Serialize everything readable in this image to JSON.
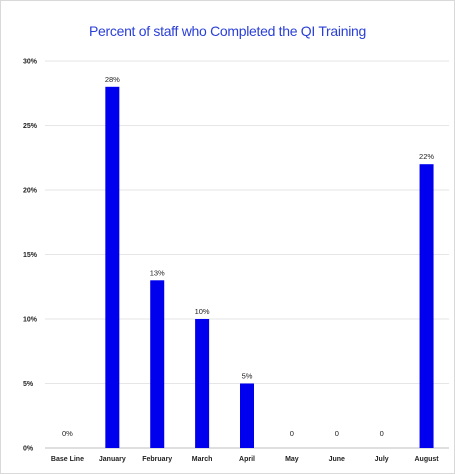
{
  "chart_data": {
    "type": "bar",
    "title": "Percent of staff who Completed the QI Training",
    "xlabel": "",
    "ylabel": "",
    "categories": [
      "Base Line",
      "January",
      "February",
      "March",
      "April",
      "May",
      "June",
      "July",
      "August"
    ],
    "values": [
      0,
      28,
      13,
      10,
      5,
      0,
      0,
      0,
      22
    ],
    "data_labels": [
      "0%",
      "28%",
      "13%",
      "10%",
      "5%",
      "0",
      "0",
      "0",
      "22%"
    ],
    "ylim": [
      0,
      30
    ],
    "y_ticks": [
      0,
      5,
      10,
      15,
      20,
      25,
      30
    ],
    "y_tick_labels": [
      "0%",
      "5%",
      "10%",
      "15%",
      "20%",
      "25%",
      "30%"
    ],
    "grid": true,
    "legend": "none",
    "bar_color": "#0000ee"
  }
}
